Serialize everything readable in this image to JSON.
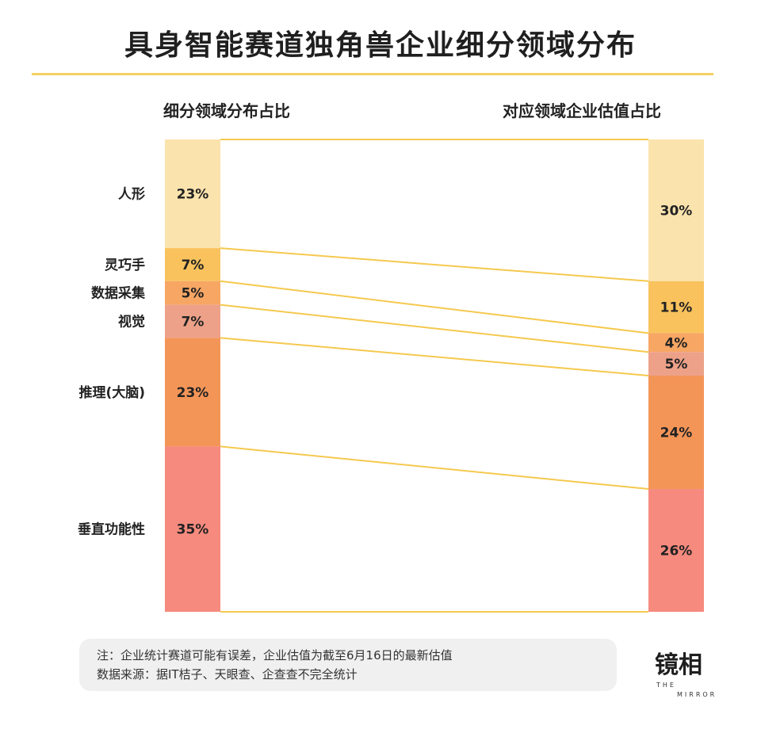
{
  "title": "具身智能赛道独角兽企业细分领域分布",
  "left_header": "细分领域分布占比",
  "right_header": "对应领域企业估值占比",
  "chart_data": {
    "type": "bar",
    "categories": [
      "人形",
      "灵巧手",
      "数据采集",
      "视觉",
      "推理(大脑)",
      "垂直功能性"
    ],
    "series": [
      {
        "name": "细分领域分布占比",
        "values": [
          23,
          7,
          5,
          7,
          23,
          35
        ],
        "labels": [
          "23%",
          "7%",
          "5%",
          "7%",
          "23%",
          "35%"
        ]
      },
      {
        "name": "对应领域企业估值占比",
        "values": [
          30,
          11,
          4,
          5,
          24,
          26
        ],
        "labels": [
          "30%",
          "11%",
          "4%",
          "5%",
          "24%",
          "26%"
        ]
      }
    ],
    "colors": [
      "#fbe3ad",
      "#f9c25d",
      "#f7a664",
      "#eda189",
      "#f49558",
      "#f68a7e"
    ],
    "connector_color": "#f5c94f"
  },
  "note": {
    "line1": "注：企业统计赛道可能有误差，企业估值为截至6月16日的最新估值",
    "line2": "数据来源：据IT桔子、天眼查、企查查不完全统计"
  },
  "logo": {
    "main": "镜相",
    "sub1": "THE",
    "sub2": "MIRROR"
  }
}
